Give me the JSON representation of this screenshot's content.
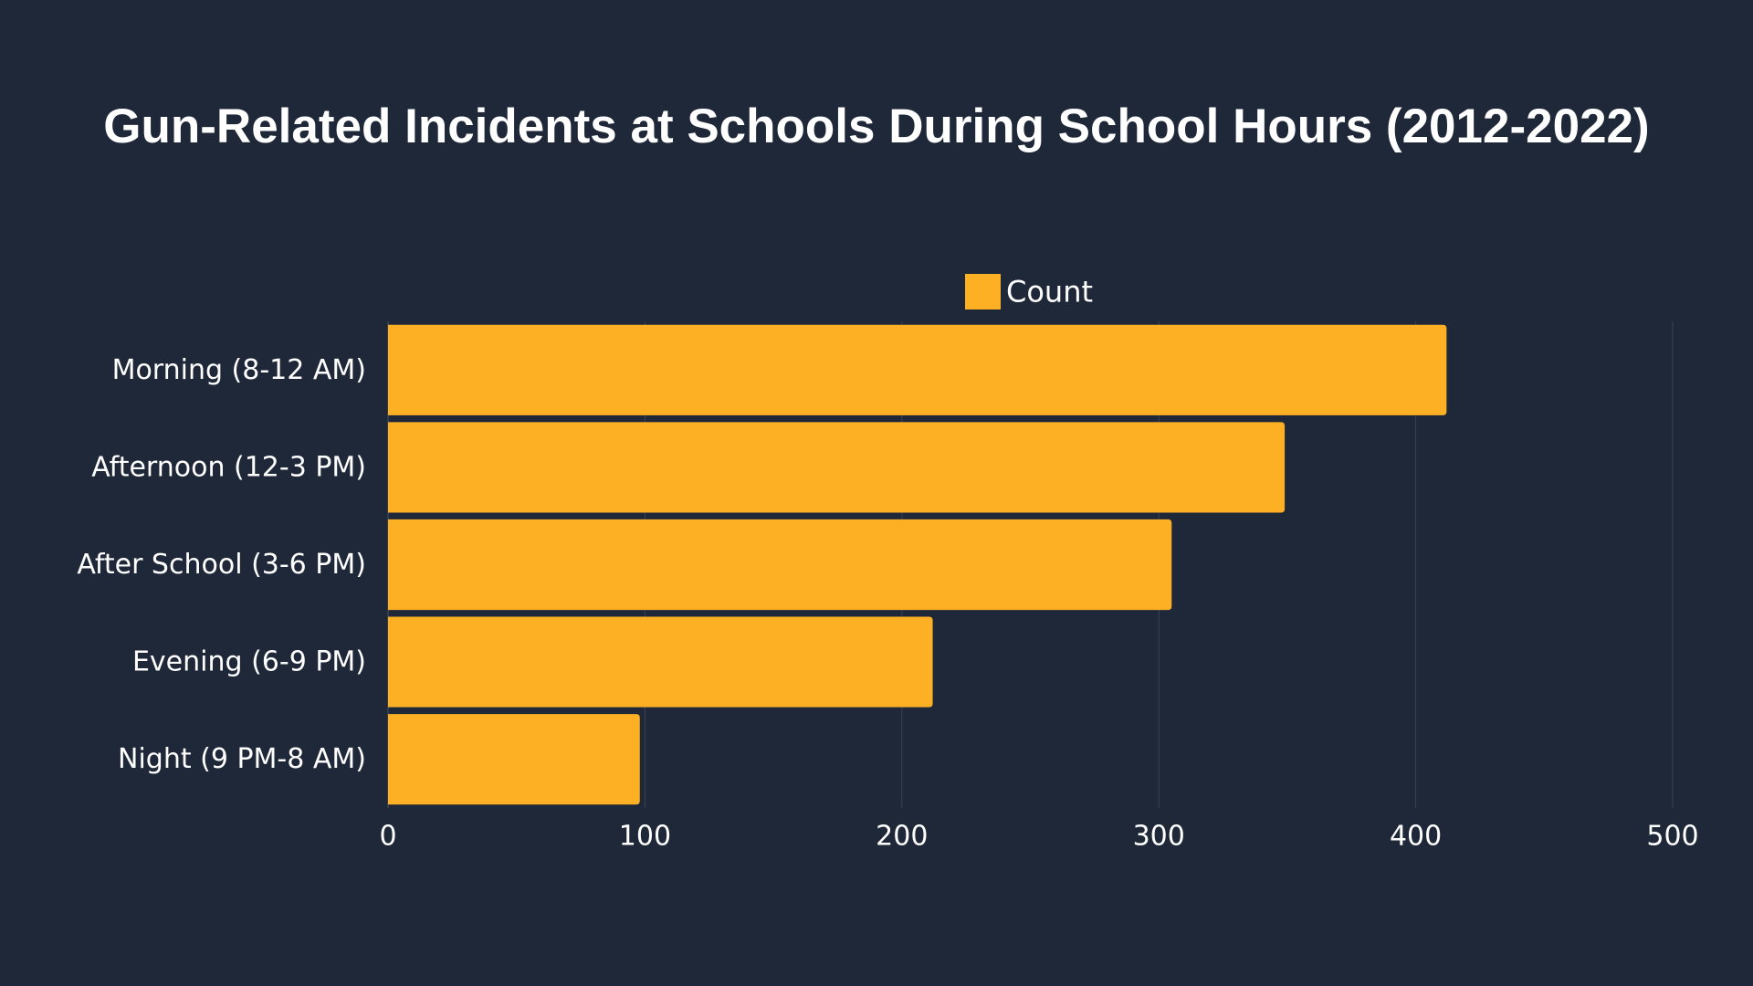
{
  "chart_data": {
    "type": "bar",
    "orientation": "horizontal",
    "title": "Gun-Related Incidents at Schools During School Hours (2012-2022)",
    "xlabel": "",
    "ylabel": "",
    "categories": [
      "Morning (8-12 AM)",
      "Afternoon (12-3 PM)",
      "After School (3-6 PM)",
      "Evening (6-9 PM)",
      "Night (9 PM-8 AM)"
    ],
    "series": [
      {
        "name": "Count",
        "values": [
          412,
          349,
          305,
          212,
          98
        ],
        "color": "#fdb024"
      }
    ],
    "xlim": [
      0,
      500
    ],
    "xticks": [
      0,
      100,
      200,
      300,
      400,
      500
    ],
    "grid": "vertical",
    "legend_position": "top-center"
  },
  "colors": {
    "background": "#1f2838",
    "text": "#ffffff",
    "gridline": "#394253",
    "bar": "#fdb024"
  }
}
